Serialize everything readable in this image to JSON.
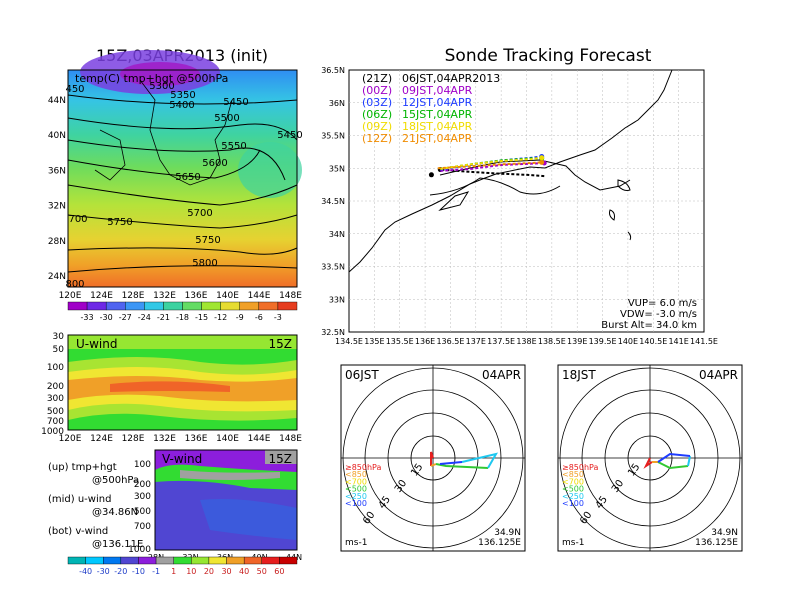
{
  "left_title": "15Z,03APR2013 (init)",
  "right_title": "Sonde Tracking Forecast",
  "map500": {
    "label": "temp(C) tmp+hgt @500hPa",
    "x_ticks": [
      "120E",
      "124E",
      "128E",
      "132E",
      "136E",
      "140E",
      "144E",
      "148E"
    ],
    "y_ticks": [
      "44N",
      "40N",
      "36N",
      "32N",
      "28N",
      "24N"
    ],
    "contours": [
      "5300",
      "5350",
      "5400",
      "5450",
      "5450",
      "5500",
      "5550",
      "5600",
      "5650",
      "5700",
      "5750",
      "5800",
      "5750",
      "450",
      "700",
      "800"
    ],
    "colorbar": [
      "-33",
      "-30",
      "-27",
      "-24",
      "-21",
      "-18",
      "-15",
      "-12",
      "-9",
      "-6",
      "-3"
    ],
    "colorbar_colors": [
      "#a000c8",
      "#6e28e6",
      "#5064f0",
      "#3c96f5",
      "#32c8e6",
      "#3cd2a0",
      "#64dc64",
      "#a0e632",
      "#e6dc32",
      "#f0a028",
      "#f06e28",
      "#e63c1e"
    ]
  },
  "uwind": {
    "label": "U-wind",
    "time": "15Z",
    "y_ticks": [
      "30",
      "50",
      "100",
      "200",
      "300",
      "500",
      "700",
      "1000"
    ],
    "x_ticks": [
      "120E",
      "124E",
      "128E",
      "132E",
      "136E",
      "140E",
      "144E",
      "148E"
    ]
  },
  "vwind": {
    "label": "V-wind",
    "time": "15Z",
    "y_ticks": [
      "100",
      "200",
      "300",
      "500",
      "700",
      "1000"
    ],
    "x_ticks": [
      "28N",
      "32N",
      "36N",
      "40N",
      "44N"
    ]
  },
  "wind_colorbar": [
    "-40",
    "-30",
    "-20",
    "-10",
    "-1",
    "1",
    "10",
    "20",
    "30",
    "40",
    "50",
    "60"
  ],
  "wind_colorbar_colors": [
    "#00b4b4",
    "#00c8ff",
    "#0078f0",
    "#5046d2",
    "#8c1edc",
    "#a0a0a0",
    "#32dc32",
    "#96e632",
    "#f0e632",
    "#f0a028",
    "#f06428",
    "#e61e1e",
    "#c80000"
  ],
  "notes": [
    {
      "a": "(up) tmp+hgt",
      "b": "@500hPa"
    },
    {
      "a": "(mid) u-wind",
      "b": "@34.86N"
    },
    {
      "a": "(bot) v-wind",
      "b": "@136.11E"
    }
  ],
  "track": {
    "x_ticks": [
      "134.5E",
      "135E",
      "135.5E",
      "136E",
      "136.5E",
      "137E",
      "137.5E",
      "138E",
      "138.5E",
      "139E",
      "139.5E",
      "140E",
      "140.5E",
      "141E",
      "141.5E"
    ],
    "y_ticks": [
      "36.5N",
      "36N",
      "35.5N",
      "35N",
      "34.5N",
      "34N",
      "33.5N",
      "33N",
      "32.5N"
    ],
    "legend": [
      {
        "code": "(21Z)",
        "time": "06JST,04APR2013",
        "color": "#000000"
      },
      {
        "code": "(00Z)",
        "time": "09JST,04APR",
        "color": "#a000c8"
      },
      {
        "code": "(03Z)",
        "time": "12JST,04APR",
        "color": "#1e3cff"
      },
      {
        "code": "(06Z)",
        "time": "15JST,04APR",
        "color": "#00b400"
      },
      {
        "code": "(09Z)",
        "time": "18JST,04APR",
        "color": "#f0dc00"
      },
      {
        "code": "(12Z)",
        "time": "21JST,04APR",
        "color": "#f08c00"
      }
    ],
    "params": [
      "VUP= 6.0 m/s",
      "VDW= -3.0 m/s",
      "Burst Alt= 34.0 km"
    ]
  },
  "polars": [
    {
      "left": "06JST",
      "right": "04APR",
      "lat": "34.9N",
      "lon": "136.125E",
      "unit": "ms-1"
    },
    {
      "left": "18JST",
      "right": "04APR",
      "lat": "34.9N",
      "lon": "136.125E",
      "unit": "ms-1"
    }
  ],
  "ring_labels": [
    "15",
    "30",
    "45",
    "60"
  ],
  "pressure_legend": [
    {
      "label": "≥850hPa",
      "color": "#e61e1e"
    },
    {
      "label": "<850",
      "color": "#f0a028"
    },
    {
      "label": "<700",
      "color": "#f0dc00"
    },
    {
      "label": "<500",
      "color": "#32c832"
    },
    {
      "label": "<250",
      "color": "#1ec8f0"
    },
    {
      "label": "<100",
      "color": "#1e3cff"
    }
  ],
  "chart_data": {
    "type": "line",
    "title": "Sonde Tracking Forecast",
    "x_range": [
      134.5,
      141.5
    ],
    "y_range": [
      32.5,
      36.5
    ],
    "launch": {
      "lon": 136.125,
      "lat": 34.9
    },
    "series": [
      {
        "name": "(21Z) 06JST,04APR2013",
        "lon": [
          138.35,
          138.0,
          137.4,
          136.8,
          136.3
        ],
        "lat": [
          34.88,
          34.9,
          34.92,
          34.95,
          34.98
        ]
      },
      {
        "name": "(00Z) 09JST,04APR",
        "lon": [
          136.3,
          136.9,
          137.5,
          138.1,
          138.35
        ],
        "lat": [
          34.96,
          34.99,
          35.05,
          35.07,
          35.08
        ]
      },
      {
        "name": "(03Z) 12JST,04APR",
        "lon": [
          136.3,
          136.9,
          137.5,
          138.1,
          138.3
        ],
        "lat": [
          34.98,
          35.05,
          35.12,
          35.16,
          35.18
        ]
      },
      {
        "name": "(06Z) 15JST,04APR",
        "lon": [
          136.3,
          136.9,
          137.5,
          138.1,
          138.3
        ],
        "lat": [
          34.99,
          35.06,
          35.12,
          35.15,
          35.15
        ]
      },
      {
        "name": "(09Z) 18JST,04APR",
        "lon": [
          136.3,
          136.9,
          137.5,
          138.1,
          138.3
        ],
        "lat": [
          34.99,
          35.06,
          35.11,
          35.14,
          35.16
        ]
      },
      {
        "name": "(12Z) 21JST,04APR",
        "lon": [
          136.25,
          136.9,
          137.5,
          138.1,
          138.3
        ],
        "lat": [
          35.0,
          35.03,
          35.06,
          35.08,
          35.09
        ]
      }
    ]
  }
}
